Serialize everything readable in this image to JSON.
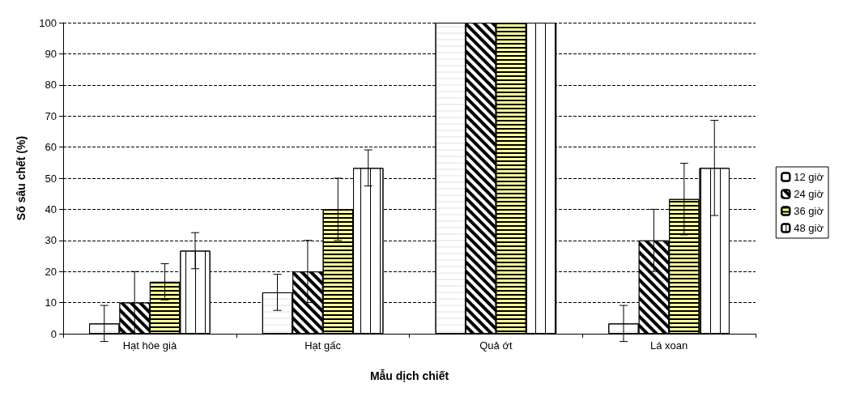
{
  "chart_data": {
    "type": "bar",
    "xlabel": "Mẫu dịch chiết",
    "ylabel": "Số sâu chết (%)",
    "categories": [
      "Hạt hòe già",
      "Hạt gấc",
      "Quả ớt",
      "Lá xoan"
    ],
    "series": [
      {
        "name": "12 giờ",
        "color": "#ffffff",
        "values": [
          3.3,
          13.3,
          100,
          3.3
        ],
        "errors": [
          5.8,
          5.8,
          null,
          5.8
        ]
      },
      {
        "name": "24 giờ",
        "color": "#000000",
        "values": [
          10,
          20,
          100,
          30
        ],
        "errors": [
          10,
          10,
          null,
          10
        ]
      },
      {
        "name": "36 giờ",
        "color": "#ffff99",
        "values": [
          16.7,
          40,
          100,
          43.3
        ],
        "errors": [
          5.8,
          10,
          null,
          11.5
        ]
      },
      {
        "name": "48 giờ",
        "color": "#ffffff",
        "values": [
          26.7,
          53.3,
          100,
          53.3
        ],
        "errors": [
          5.8,
          5.8,
          null,
          15.3
        ]
      }
    ],
    "ylim": [
      0,
      100
    ],
    "yticks": [
      0,
      10,
      20,
      30,
      40,
      50,
      60,
      70,
      80,
      90,
      100
    ],
    "grid": "y",
    "legend": "right"
  }
}
